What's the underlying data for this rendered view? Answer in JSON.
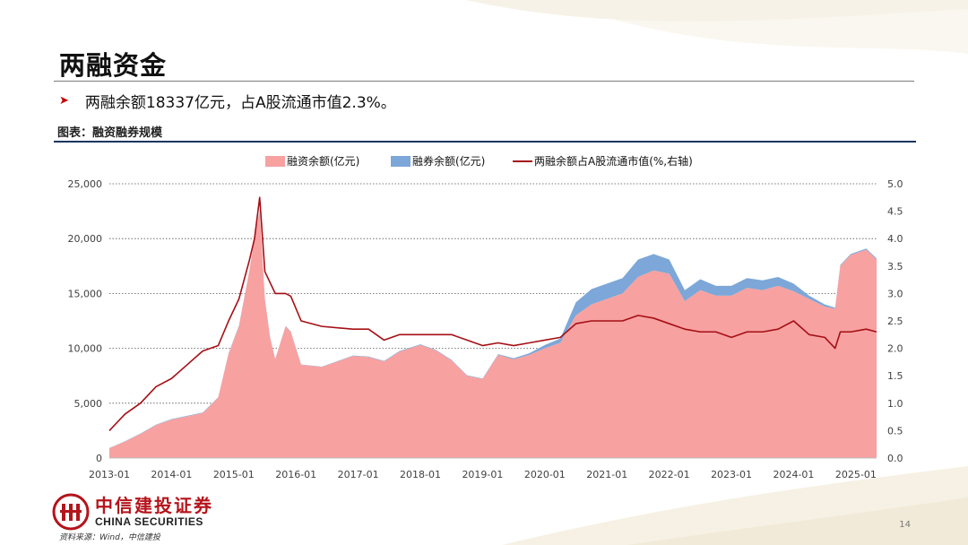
{
  "slide": {
    "title": "两融资金",
    "bullet": "两融余额18337亿元，占A股流通市值2.3%。",
    "caption": "图表：融资融券规模",
    "source": "资料来源：Wind，中信建投",
    "page_number": "14",
    "logo": {
      "cn": "中信建投证券",
      "en": "CHINA SECURITIES"
    },
    "colors": {
      "accent": "#c00000",
      "navy_rule": "#16355e",
      "logo_red": "#b4141b"
    }
  },
  "chart_data": {
    "type": "area",
    "title": "",
    "x_labels": [
      "2013-01",
      "2014-01",
      "2015-01",
      "2016-01",
      "2017-01",
      "2018-01",
      "2019-01",
      "2020-01",
      "2021-01",
      "2022-01",
      "2023-01",
      "2024-01",
      "2025-01"
    ],
    "x_range": [
      "2013-01",
      "2025-05"
    ],
    "y_left": {
      "range": [
        0,
        25000
      ],
      "ticks": [
        "0",
        "5,000",
        "10,000",
        "15,000",
        "20,000",
        "25,000"
      ]
    },
    "y_right": {
      "range": [
        0,
        5.0
      ],
      "ticks": [
        "0.0",
        "0.5",
        "1.0",
        "1.5",
        "2.0",
        "2.5",
        "3.0",
        "3.5",
        "4.0",
        "4.5",
        "5.0"
      ]
    },
    "grid": "dotted horizontal",
    "legend_position": "top-center",
    "series": [
      {
        "name": "融资余额(亿元)",
        "type": "area",
        "axis": "left",
        "color": "#f7a1a1"
      },
      {
        "name": "融券余额(亿元)",
        "type": "area",
        "axis": "left",
        "color": "#7ca7d8",
        "stacked_on": "融资余额(亿元)"
      },
      {
        "name": "两融余额占A股流通市值(%,右轴)",
        "type": "line",
        "axis": "right",
        "color": "#a50f15"
      }
    ],
    "points": [
      [
        "2013-01",
        900,
        20,
        0.5
      ],
      [
        "2013-04",
        1500,
        30,
        0.8
      ],
      [
        "2013-07",
        2200,
        40,
        1.0
      ],
      [
        "2013-10",
        3000,
        40,
        1.3
      ],
      [
        "2014-01",
        3500,
        50,
        1.45
      ],
      [
        "2014-04",
        3800,
        50,
        1.7
      ],
      [
        "2014-07",
        4100,
        50,
        1.95
      ],
      [
        "2014-10",
        5500,
        50,
        2.05
      ],
      [
        "2014-12",
        9500,
        60,
        2.5
      ],
      [
        "2015-02",
        12000,
        80,
        2.9
      ],
      [
        "2015-04",
        17000,
        80,
        3.6
      ],
      [
        "2015-05",
        20000,
        80,
        4.0
      ],
      [
        "2015-06",
        22500,
        100,
        4.75
      ],
      [
        "2015-07",
        14500,
        50,
        3.4
      ],
      [
        "2015-08",
        11000,
        30,
        3.2
      ],
      [
        "2015-09",
        9000,
        30,
        3.0
      ],
      [
        "2015-11",
        12000,
        40,
        3.0
      ],
      [
        "2015-12",
        11500,
        40,
        2.95
      ],
      [
        "2016-02",
        8500,
        30,
        2.5
      ],
      [
        "2016-06",
        8300,
        30,
        2.4
      ],
      [
        "2016-12",
        9300,
        40,
        2.35
      ],
      [
        "2017-03",
        9200,
        50,
        2.35
      ],
      [
        "2017-06",
        8800,
        50,
        2.15
      ],
      [
        "2017-09",
        9700,
        60,
        2.25
      ],
      [
        "2018-01",
        10300,
        70,
        2.25
      ],
      [
        "2018-04",
        9800,
        60,
        2.25
      ],
      [
        "2018-07",
        8900,
        60,
        2.25
      ],
      [
        "2018-10",
        7500,
        50,
        2.15
      ],
      [
        "2019-01",
        7200,
        50,
        2.05
      ],
      [
        "2019-04",
        9400,
        70,
        2.1
      ],
      [
        "2019-07",
        9000,
        100,
        2.05
      ],
      [
        "2019-10",
        9400,
        150,
        2.1
      ],
      [
        "2020-01",
        10000,
        300,
        2.15
      ],
      [
        "2020-04",
        10500,
        400,
        2.2
      ],
      [
        "2020-07",
        13000,
        1200,
        2.45
      ],
      [
        "2020-10",
        14000,
        1400,
        2.5
      ],
      [
        "2021-01",
        14500,
        1400,
        2.5
      ],
      [
        "2021-04",
        15000,
        1400,
        2.5
      ],
      [
        "2021-07",
        16500,
        1600,
        2.6
      ],
      [
        "2021-10",
        17100,
        1500,
        2.55
      ],
      [
        "2022-01",
        16800,
        1300,
        2.45
      ],
      [
        "2022-04",
        14300,
        1000,
        2.35
      ],
      [
        "2022-07",
        15300,
        1000,
        2.3
      ],
      [
        "2022-10",
        14800,
        900,
        2.3
      ],
      [
        "2023-01",
        14800,
        900,
        2.2
      ],
      [
        "2023-04",
        15500,
        900,
        2.3
      ],
      [
        "2023-07",
        15300,
        900,
        2.3
      ],
      [
        "2023-10",
        15700,
        800,
        2.35
      ],
      [
        "2024-01",
        15200,
        700,
        2.5
      ],
      [
        "2024-04",
        14500,
        300,
        2.25
      ],
      [
        "2024-07",
        13800,
        200,
        2.2
      ],
      [
        "2024-09",
        13600,
        100,
        2.0
      ],
      [
        "2024-10",
        17500,
        100,
        2.3
      ],
      [
        "2024-12",
        18500,
        100,
        2.3
      ],
      [
        "2025-03",
        19000,
        100,
        2.35
      ],
      [
        "2025-05",
        18100,
        100,
        2.3
      ]
    ]
  }
}
